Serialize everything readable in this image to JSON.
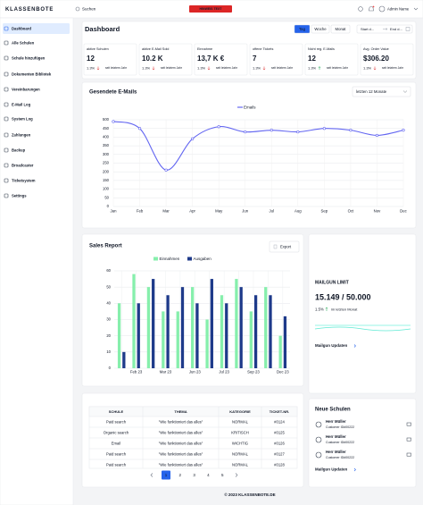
{
  "topbar": {
    "logo": "KLASSENBOTE",
    "search": "Suchen",
    "notice": "HINWEIS TEXT",
    "user": "Admin Name"
  },
  "sidebar": [
    "Dashboard",
    "Alle Schulen",
    "Schule hinzufügen",
    "Dokumenten Bibliotek",
    "Vereinbarungen",
    "E-Mail Log",
    "System Log",
    "Zahlungen",
    "Backup",
    "Broadcaster",
    "Ticketsystem",
    "Settings"
  ],
  "dashboard": {
    "title": "Dashboard",
    "periods": [
      "Tag",
      "Woche",
      "Monat"
    ],
    "date_start": "Start d...",
    "date_end": "End d...",
    "stats": [
      {
        "label": "aktive Schulen",
        "value": "12",
        "change": "1.3%",
        "note": "seit letztem Jahr",
        "trend": "down"
      },
      {
        "label": "aktive E-Mail Sold",
        "value": "10.2 K",
        "change": "1.3%",
        "note": "seit letztem Jahr",
        "trend": "down"
      },
      {
        "label": "Einnahme",
        "value": "13,7 K €",
        "change": "1.3%",
        "note": "seit letztem Jahr",
        "trend": "down"
      },
      {
        "label": "offene Tickets",
        "value": "7",
        "change": "1.3%",
        "note": "seit letztem Jahr",
        "trend": "down"
      },
      {
        "label": "Nicht reg. E-Mails",
        "value": "12",
        "change": "1.3%",
        "note": "seit letztem Jahr",
        "trend": "up"
      },
      {
        "label": "Avg. Order Value",
        "value": "$306.20",
        "change": "1.3%",
        "note": "seit letztem Jahr",
        "trend": "down"
      }
    ]
  },
  "email_chart": {
    "type": "line",
    "title": "Gesendete E-Mails",
    "range": "letzten 12 Monate",
    "categories": [
      "Jan",
      "Feb",
      "Mar",
      "Apr",
      "May",
      "Jun",
      "Jul",
      "Aug",
      "Sep",
      "Oct",
      "Nov",
      "Dec"
    ],
    "series": [
      {
        "name": "Emails",
        "color": "#6366f1",
        "values": [
          490,
          450,
          210,
          390,
          460,
          430,
          440,
          430,
          450,
          440,
          410,
          440
        ]
      }
    ],
    "ylim": [
      0,
      500
    ],
    "yticks": [
      0,
      50,
      100,
      150,
      200,
      250,
      300,
      350,
      400,
      450,
      500
    ],
    "grid": true
  },
  "sales_chart": {
    "type": "bar",
    "title": "Sales Report",
    "export": "Export",
    "categories": [
      null,
      "Feb 23",
      null,
      "Mar 23",
      null,
      "Jun 23",
      null,
      "Jul 23",
      null,
      "Sep 23",
      null,
      "Dec 23"
    ],
    "series": [
      {
        "name": "Einnahmen",
        "color": "#86efac",
        "values": [
          40,
          58,
          50,
          35,
          35,
          50,
          30,
          45,
          55,
          35,
          50,
          20
        ]
      },
      {
        "name": "Ausgaben",
        "color": "#1e3a8a",
        "values": [
          10,
          40,
          55,
          45,
          50,
          40,
          55,
          40,
          50,
          45,
          45,
          32
        ]
      }
    ],
    "ylim": [
      0,
      60
    ],
    "yticks": [
      0,
      10,
      20,
      30,
      40,
      50,
      60
    ],
    "grid": true
  },
  "mailgun": {
    "title": "MAILGUN LIMIT",
    "usage": "15.149 / 50.000",
    "change": "1.5%",
    "note": "im letzten Monat",
    "link": "Mailgun Updaten"
  },
  "tickets": {
    "columns": [
      "SCHULE",
      "THEMA",
      "KATEGORIE",
      "TICKET-NR."
    ],
    "rows": [
      [
        "Paid search",
        "\"Wie funktioniert das alles\"",
        "NORMAL",
        "#0124"
      ],
      [
        "Organic search",
        "\"Wie funktioniert das alles\"",
        "KRITISCH",
        "#0125"
      ],
      [
        "Email",
        "\"Wie funktioniert das alles\"",
        "WICHTIG",
        "#0126"
      ],
      [
        "Paid search",
        "\"Wie funktioniert das alles\"",
        "NORMAL",
        "#0127"
      ],
      [
        "Paid search",
        "\"Wie funktioniert das alles\"",
        "NORMAL",
        "#0128"
      ]
    ],
    "pages": [
      "1",
      "2",
      "3",
      "4",
      "5"
    ]
  },
  "schools": {
    "title": "Neue Schulen",
    "items": [
      {
        "name": "Herr Müller",
        "id": "Customer ID#00222"
      },
      {
        "name": "Herr Müller",
        "id": "Customer ID#00222"
      },
      {
        "name": "Herr Müller",
        "id": "Customer ID#00222"
      }
    ],
    "link": "Mailgun Updaten"
  },
  "footer": "© 2023 KLASSENBOTE.DE"
}
